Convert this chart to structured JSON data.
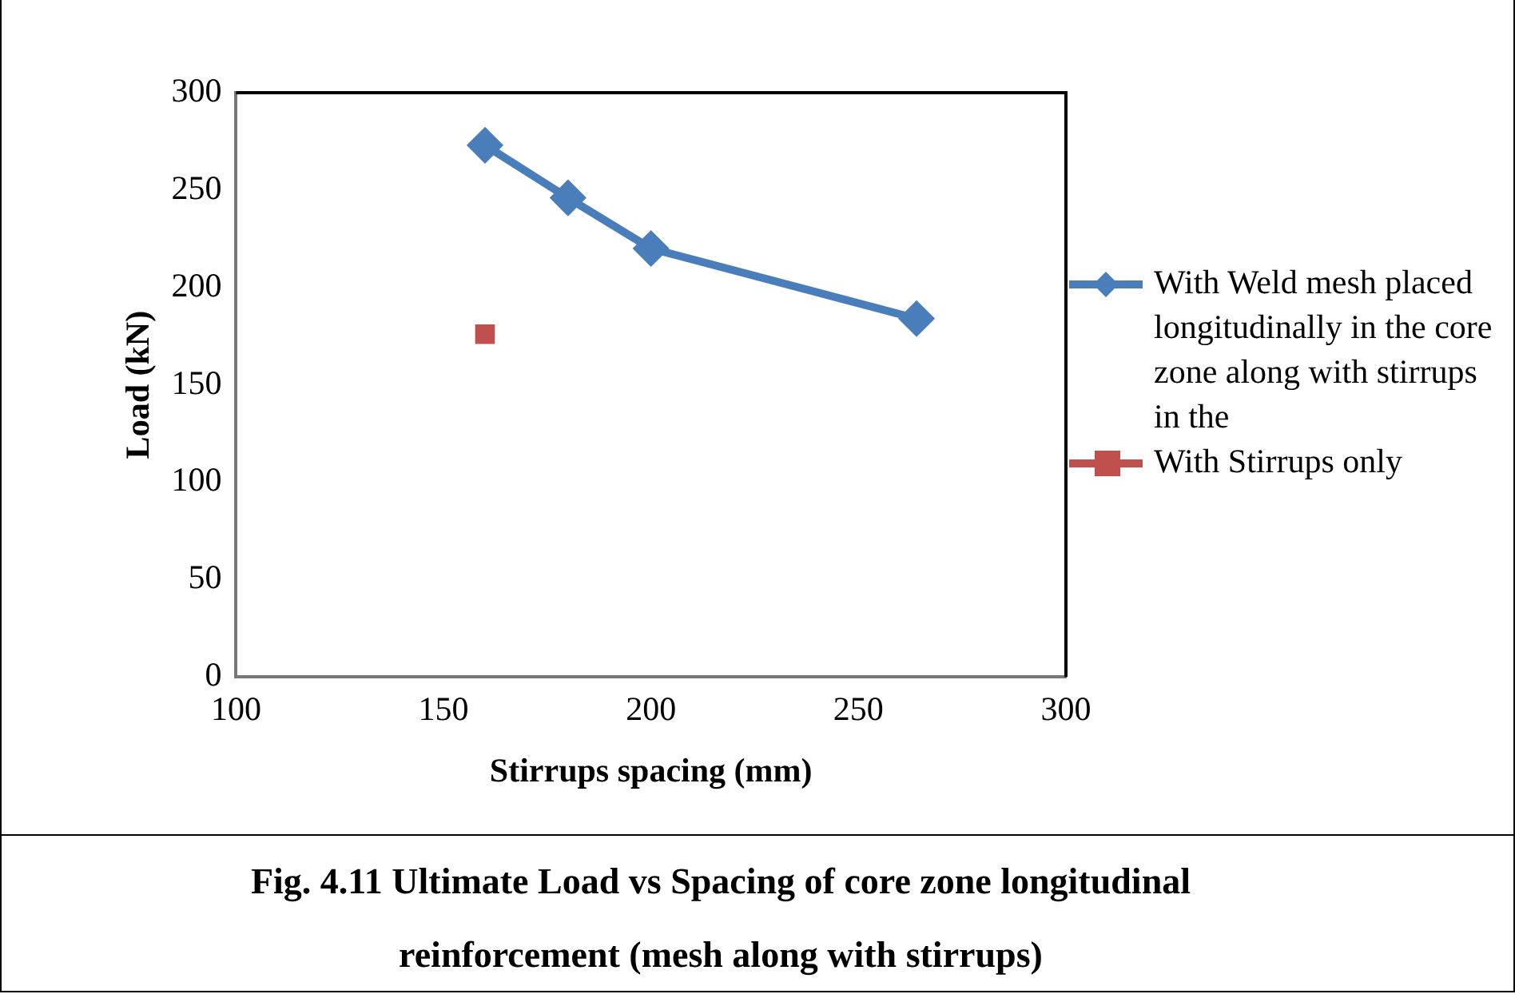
{
  "chart_data": {
    "type": "line",
    "title": "Fig. 4.11 Ultimate Load vs Spacing of core zone longitudinal reinforcement (mesh along with stirrups)",
    "xlabel": "Stirrups spacing (mm)",
    "ylabel": "Load (kN)",
    "series": [
      {
        "name": "With Weld mesh placed longitudinally in the core zone along with stirrups in the",
        "color": "#4a7ebb",
        "marker": "diamond",
        "x": [
          160,
          180,
          200,
          264
        ],
        "values": [
          273,
          246,
          220,
          184
        ]
      },
      {
        "name": "With Stirrups only",
        "type": "scatter",
        "color": "#c0504d",
        "marker": "square",
        "x": [
          160
        ],
        "values": [
          176
        ]
      }
    ],
    "xlim": [
      100,
      300
    ],
    "xticks": [
      100,
      150,
      200,
      250,
      300
    ],
    "ylim": [
      0,
      300
    ],
    "yticks": [
      0,
      50,
      100,
      150,
      200,
      250,
      300
    ],
    "grid": false,
    "legend": "right"
  }
}
